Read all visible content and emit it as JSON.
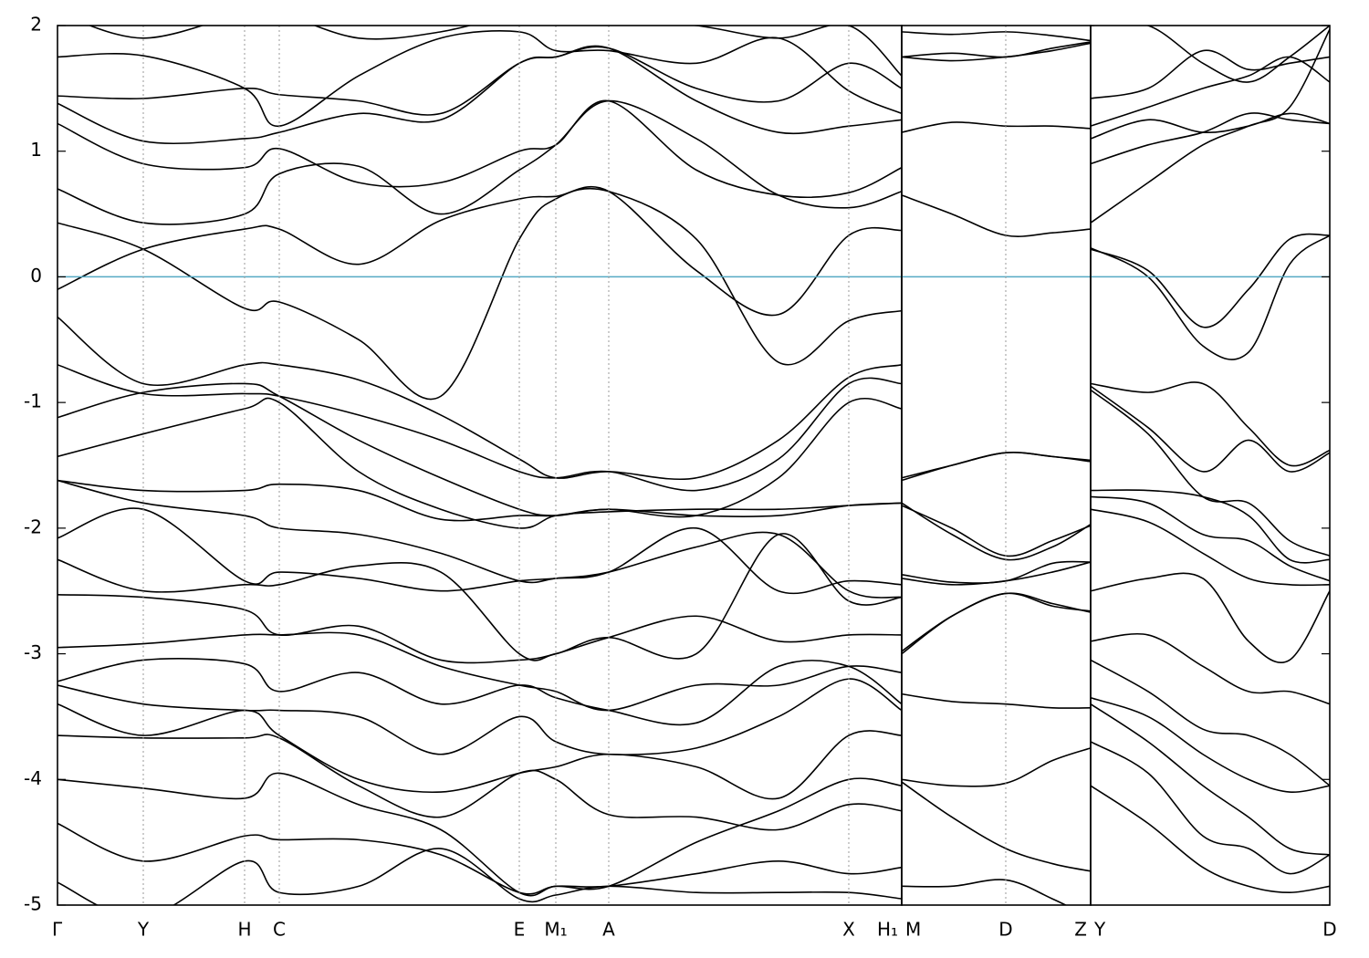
{
  "chart_data": [
    {
      "type": "line",
      "color": "#000000",
      "hline": 0,
      "hline_color": "#55aac4",
      "xlim": [
        0,
        925
      ],
      "ylim": [
        -5,
        2
      ],
      "yticks": [
        -5,
        -4,
        -3,
        -2,
        -1,
        0,
        1,
        2
      ],
      "xticks": [
        {
          "value": 0,
          "label": "Γ"
        },
        {
          "value": 94,
          "label": "Y"
        },
        {
          "value": 205,
          "label": "H"
        },
        {
          "value": 243,
          "label": "C"
        },
        {
          "value": 506,
          "label": "E"
        },
        {
          "value": 546,
          "label": "M₁"
        },
        {
          "value": 604,
          "label": "A"
        },
        {
          "value": 867,
          "label": "X"
        },
        {
          "value": 925,
          "label": "H₁"
        }
      ],
      "x": [
        0,
        94,
        205,
        243,
        330,
        420,
        506,
        546,
        604,
        700,
        790,
        867,
        925
      ],
      "series": [
        {
          "values": [
            -0.1,
            0.22,
            0.38,
            0.38,
            0.1,
            0.45,
            0.62,
            0.64,
            0.68,
            0.05,
            -0.3,
            0.33,
            0.37
          ]
        },
        {
          "values": [
            0.43,
            0.22,
            -0.25,
            -0.2,
            -0.5,
            -0.95,
            0.3,
            0.62,
            0.68,
            0.3,
            -0.68,
            -0.35,
            -0.27
          ]
        },
        {
          "values": [
            0.7,
            0.43,
            0.5,
            0.82,
            0.88,
            0.5,
            0.85,
            1.05,
            1.4,
            1.1,
            0.65,
            0.55,
            0.68
          ]
        },
        {
          "values": [
            1.22,
            0.9,
            0.87,
            1.02,
            0.75,
            0.75,
            1.0,
            1.05,
            1.4,
            0.85,
            0.65,
            0.67,
            0.87
          ]
        },
        {
          "values": [
            1.38,
            1.08,
            1.1,
            1.15,
            1.3,
            1.25,
            1.7,
            1.75,
            1.82,
            1.4,
            1.15,
            1.2,
            1.25
          ]
        },
        {
          "values": [
            1.44,
            1.42,
            1.5,
            1.45,
            1.4,
            1.3,
            1.7,
            1.75,
            1.82,
            1.5,
            1.4,
            1.7,
            1.5
          ]
        },
        {
          "values": [
            1.75,
            1.76,
            1.5,
            1.2,
            1.6,
            1.9,
            1.95,
            1.8,
            1.8,
            1.7,
            1.9,
            1.48,
            1.3
          ]
        },
        {
          "values": [
            2.1,
            1.9,
            2.1,
            2.1,
            1.9,
            1.95,
            2.1,
            2.1,
            2.05,
            2.0,
            1.9,
            2.0,
            1.6
          ]
        },
        {
          "values": [
            -0.32,
            -0.85,
            -0.7,
            -0.7,
            -0.82,
            -1.1,
            -1.45,
            -1.6,
            -1.55,
            -1.6,
            -1.3,
            -0.8,
            -0.7
          ]
        },
        {
          "values": [
            -0.7,
            -0.93,
            -0.93,
            -0.95,
            -1.1,
            -1.3,
            -1.55,
            -1.6,
            -1.55,
            -1.7,
            -1.45,
            -0.85,
            -0.85
          ]
        },
        {
          "values": [
            -1.12,
            -0.92,
            -0.85,
            -0.95,
            -1.3,
            -1.6,
            -1.85,
            -1.9,
            -1.85,
            -1.9,
            -1.6,
            -1.0,
            -1.05
          ]
        },
        {
          "values": [
            -1.43,
            -1.25,
            -1.05,
            -1.0,
            -1.55,
            -1.85,
            -2.0,
            -1.9,
            -1.87,
            -1.85,
            -1.85,
            -1.82,
            -1.8
          ]
        },
        {
          "values": [
            -1.62,
            -1.7,
            -1.7,
            -1.65,
            -1.7,
            -1.93,
            -1.9,
            -1.9,
            -1.85,
            -1.9,
            -1.9,
            -1.82,
            -1.8
          ]
        },
        {
          "values": [
            -1.62,
            -1.8,
            -1.9,
            -2.0,
            -2.05,
            -2.2,
            -2.42,
            -2.4,
            -2.35,
            -2.15,
            -2.05,
            -2.5,
            -2.55
          ]
        },
        {
          "values": [
            -2.08,
            -1.85,
            -2.42,
            -2.35,
            -2.4,
            -2.5,
            -2.42,
            -2.4,
            -2.35,
            -2.0,
            -2.5,
            -2.42,
            -2.45
          ]
        },
        {
          "values": [
            -2.25,
            -2.5,
            -2.45,
            -2.45,
            -2.3,
            -2.35,
            -3.0,
            -3.0,
            -2.87,
            -3.0,
            -2.05,
            -2.58,
            -2.55
          ]
        },
        {
          "values": [
            -2.53,
            -2.55,
            -2.65,
            -2.85,
            -2.78,
            -3.05,
            -3.05,
            -3.0,
            -2.87,
            -2.7,
            -2.9,
            -2.85,
            -2.85
          ]
        },
        {
          "values": [
            -2.95,
            -2.92,
            -2.85,
            -2.85,
            -2.85,
            -3.1,
            -3.25,
            -3.3,
            -3.45,
            -3.25,
            -3.25,
            -3.1,
            -3.15
          ]
        },
        {
          "values": [
            -3.22,
            -3.05,
            -3.08,
            -3.3,
            -3.15,
            -3.4,
            -3.25,
            -3.35,
            -3.45,
            -3.55,
            -3.1,
            -3.1,
            -3.4
          ]
        },
        {
          "values": [
            -3.25,
            -3.4,
            -3.45,
            -3.45,
            -3.5,
            -3.8,
            -3.5,
            -3.7,
            -3.8,
            -3.75,
            -3.5,
            -3.2,
            -3.45
          ]
        },
        {
          "values": [
            -3.4,
            -3.65,
            -3.45,
            -3.65,
            -4.0,
            -4.1,
            -3.95,
            -3.9,
            -3.8,
            -3.9,
            -4.15,
            -3.65,
            -3.65
          ]
        },
        {
          "values": [
            -3.65,
            -3.67,
            -3.67,
            -3.67,
            -4.05,
            -4.3,
            -3.95,
            -4.0,
            -4.28,
            -4.3,
            -4.4,
            -4.2,
            -4.25
          ]
        },
        {
          "values": [
            -4.0,
            -4.07,
            -4.15,
            -3.95,
            -4.2,
            -4.4,
            -4.9,
            -4.85,
            -4.85,
            -4.5,
            -4.25,
            -4.0,
            -4.05
          ]
        },
        {
          "values": [
            -4.35,
            -4.65,
            -4.45,
            -4.48,
            -4.48,
            -4.6,
            -4.9,
            -4.85,
            -4.85,
            -4.75,
            -4.65,
            -4.75,
            -4.7
          ]
        },
        {
          "values": [
            -4.82,
            -5.1,
            -4.65,
            -4.9,
            -4.85,
            -4.55,
            -4.95,
            -4.92,
            -4.85,
            -4.9,
            -4.9,
            -4.9,
            -4.95
          ]
        }
      ]
    },
    {
      "type": "line",
      "color": "#000000",
      "hline": 0,
      "hline_color": "#55aac4",
      "xlim": [
        925,
        1132
      ],
      "ylim": [
        -5,
        2
      ],
      "xticks": [
        {
          "value": 925,
          "label": "M"
        },
        {
          "value": 1039,
          "label": "D"
        },
        {
          "value": 1132,
          "label": "Z"
        }
      ],
      "x": [
        925,
        980,
        1039,
        1090,
        1132
      ],
      "series": [
        {
          "values": [
            1.75,
            1.78,
            1.75,
            1.82,
            1.87
          ]
        },
        {
          "values": [
            1.75,
            1.72,
            1.75,
            1.8,
            1.86
          ]
        },
        {
          "values": [
            1.95,
            1.93,
            1.95,
            1.92,
            1.88
          ]
        },
        {
          "values": [
            1.15,
            1.23,
            1.2,
            1.2,
            1.18
          ]
        },
        {
          "values": [
            0.65,
            0.5,
            0.33,
            0.35,
            0.38
          ]
        },
        {
          "values": [
            -1.6,
            -1.5,
            -1.4,
            -1.43,
            -1.46
          ]
        },
        {
          "values": [
            -1.62,
            -1.5,
            -1.4,
            -1.43,
            -1.47
          ]
        },
        {
          "values": [
            -1.82,
            -2.0,
            -2.22,
            -2.1,
            -1.98
          ]
        },
        {
          "values": [
            -1.8,
            -2.05,
            -2.25,
            -2.15,
            -1.97
          ]
        },
        {
          "values": [
            -2.37,
            -2.43,
            -2.42,
            -2.28,
            -2.27
          ]
        },
        {
          "values": [
            -2.4,
            -2.45,
            -2.42,
            -2.35,
            -2.27
          ]
        },
        {
          "values": [
            -2.98,
            -2.7,
            -2.52,
            -2.6,
            -2.67
          ]
        },
        {
          "values": [
            -3.0,
            -2.7,
            -2.52,
            -2.62,
            -2.66
          ]
        },
        {
          "values": [
            -3.32,
            -3.38,
            -3.4,
            -3.43,
            -3.43
          ]
        },
        {
          "values": [
            -4.0,
            -4.05,
            -4.03,
            -3.85,
            -3.75
          ]
        },
        {
          "values": [
            -4.02,
            -4.3,
            -4.55,
            -4.67,
            -4.73
          ]
        },
        {
          "values": [
            -4.85,
            -4.85,
            -4.8,
            -4.95,
            -5.1
          ]
        }
      ]
    },
    {
      "type": "line",
      "color": "#000000",
      "hline": 0,
      "hline_color": "#55aac4",
      "xlim": [
        1132,
        1394
      ],
      "ylim": [
        -5,
        2
      ],
      "xticks": [
        {
          "value": 1132,
          "label": "Y"
        },
        {
          "value": 1394,
          "label": "D"
        }
      ],
      "x": [
        1132,
        1195,
        1255,
        1305,
        1350,
        1394
      ],
      "series": [
        {
          "values": [
            1.42,
            1.5,
            1.8,
            1.65,
            1.7,
            1.75
          ]
        },
        {
          "values": [
            1.2,
            1.35,
            1.5,
            1.6,
            1.75,
            1.55
          ]
        },
        {
          "values": [
            1.1,
            1.25,
            1.15,
            1.2,
            1.3,
            1.22
          ]
        },
        {
          "values": [
            0.9,
            1.05,
            1.15,
            1.3,
            1.25,
            1.22
          ]
        },
        {
          "values": [
            0.43,
            0.75,
            1.05,
            1.2,
            1.35,
            1.97
          ]
        },
        {
          "values": [
            2.0,
            2.0,
            1.7,
            1.55,
            1.75,
            2.0
          ]
        },
        {
          "values": [
            0.22,
            0.05,
            -0.4,
            -0.1,
            0.3,
            0.33
          ]
        },
        {
          "values": [
            0.23,
            0.0,
            -0.55,
            -0.6,
            0.1,
            0.33
          ]
        },
        {
          "values": [
            -0.85,
            -0.92,
            -0.85,
            -1.2,
            -1.5,
            -1.38
          ]
        },
        {
          "values": [
            -0.87,
            -1.2,
            -1.55,
            -1.3,
            -1.55,
            -1.4
          ]
        },
        {
          "values": [
            -0.9,
            -1.25,
            -1.75,
            -1.8,
            -2.1,
            -2.22
          ]
        },
        {
          "values": [
            -1.7,
            -1.7,
            -1.75,
            -1.9,
            -2.25,
            -2.25
          ]
        },
        {
          "values": [
            -1.75,
            -1.8,
            -2.05,
            -2.1,
            -2.3,
            -2.42
          ]
        },
        {
          "values": [
            -1.85,
            -1.95,
            -2.2,
            -2.4,
            -2.45,
            -2.45
          ]
        },
        {
          "values": [
            -2.5,
            -2.4,
            -2.4,
            -2.9,
            -3.05,
            -2.5
          ]
        },
        {
          "values": [
            -2.9,
            -2.85,
            -3.1,
            -3.3,
            -3.3,
            -3.4
          ]
        },
        {
          "values": [
            -3.05,
            -3.3,
            -3.6,
            -3.65,
            -3.8,
            -4.05
          ]
        },
        {
          "values": [
            -3.35,
            -3.5,
            -3.8,
            -4.0,
            -4.1,
            -4.05
          ]
        },
        {
          "values": [
            -3.4,
            -3.7,
            -4.05,
            -4.3,
            -4.55,
            -4.6
          ]
        },
        {
          "values": [
            -3.7,
            -3.95,
            -4.45,
            -4.55,
            -4.75,
            -4.6
          ]
        },
        {
          "values": [
            -4.05,
            -4.35,
            -4.7,
            -4.85,
            -4.9,
            -4.85
          ]
        }
      ]
    }
  ]
}
